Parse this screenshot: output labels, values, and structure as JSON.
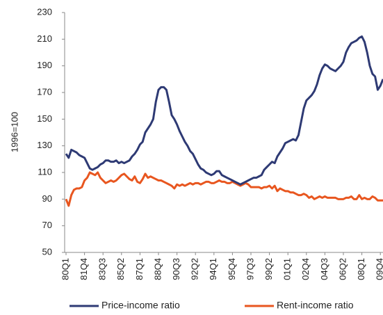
{
  "chart_data": {
    "type": "line",
    "y_label": "1996=100",
    "categories": [
      "80Q1",
      null,
      null,
      null,
      null,
      null,
      null,
      "81Q4",
      null,
      null,
      null,
      null,
      null,
      null,
      "83Q3",
      null,
      null,
      null,
      null,
      null,
      null,
      "85Q2",
      null,
      null,
      null,
      null,
      null,
      null,
      "87Q1",
      null,
      null,
      null,
      null,
      null,
      null,
      "88Q4",
      null,
      null,
      null,
      null,
      null,
      null,
      "90Q3",
      null,
      null,
      null,
      null,
      null,
      null,
      "92Q2",
      null,
      null,
      null,
      null,
      null,
      null,
      "94Q1",
      null,
      null,
      null,
      null,
      null,
      null,
      "95Q4",
      null,
      null,
      null,
      null,
      null,
      null,
      "97Q3",
      null,
      null,
      null,
      null,
      null,
      null,
      "99Q2",
      null,
      null,
      null,
      null,
      null,
      null,
      "01Q1",
      null,
      null,
      null,
      null,
      null,
      null,
      "02Q4",
      null,
      null,
      null,
      null,
      null,
      null,
      "04Q3",
      null,
      null,
      null,
      null,
      null,
      null,
      "06Q2",
      null,
      null,
      null,
      null,
      null,
      null,
      "08Q1",
      null,
      null,
      null,
      null,
      null,
      null,
      "09Q4",
      null
    ],
    "series": [
      {
        "name": "Price-income ratio",
        "color": "#2e3a74",
        "values": [
          124,
          121,
          127,
          126,
          125,
          123,
          122,
          121,
          117,
          113,
          112,
          113,
          114,
          116,
          117,
          119,
          119,
          118,
          118,
          119,
          117,
          118,
          117,
          118,
          119,
          122,
          124,
          127,
          131,
          133,
          140,
          143,
          146,
          150,
          163,
          172,
          174,
          174,
          172,
          163,
          153,
          150,
          146,
          141,
          137,
          133,
          130,
          126,
          124,
          120,
          116,
          113,
          112,
          110,
          109,
          108,
          109,
          111,
          111,
          108,
          107,
          106,
          105,
          104,
          103,
          102,
          101,
          102,
          103,
          104,
          105,
          106,
          106,
          107,
          108,
          112,
          114,
          116,
          118,
          117,
          122,
          125,
          128,
          132,
          133,
          134,
          135,
          134,
          138,
          148,
          158,
          164,
          166,
          168,
          171,
          176,
          183,
          188,
          191,
          190,
          188,
          187,
          186,
          188,
          190,
          193,
          200,
          204,
          207,
          208,
          209,
          211,
          212,
          208,
          200,
          190,
          184,
          182,
          172,
          175,
          180
        ]
      },
      {
        "name": "Rent-income ratio",
        "color": "#e8561f",
        "values": [
          90,
          85,
          93,
          97,
          98,
          98,
          99,
          104,
          106,
          110,
          109,
          108,
          110,
          106,
          104,
          102,
          103,
          104,
          103,
          104,
          106,
          108,
          109,
          107,
          105,
          104,
          107,
          103,
          102,
          105,
          109,
          106,
          107,
          106,
          105,
          104,
          104,
          103,
          102,
          101,
          100,
          98,
          101,
          100,
          101,
          100,
          101,
          102,
          101,
          102,
          102,
          101,
          102,
          103,
          103,
          102,
          102,
          103,
          104,
          103,
          103,
          102,
          102,
          103,
          102,
          101,
          100,
          101,
          102,
          101,
          99,
          99,
          99,
          99,
          98,
          99,
          99,
          100,
          98,
          100,
          96,
          98,
          97,
          96,
          96,
          95,
          95,
          94,
          93,
          93,
          94,
          93,
          91,
          92,
          90,
          91,
          92,
          91,
          92,
          91,
          91,
          91,
          91,
          90,
          90,
          90,
          91,
          91,
          92,
          90,
          90,
          93,
          90,
          91,
          90,
          90,
          92,
          91,
          89,
          89,
          89
        ]
      }
    ],
    "ylim": [
      50,
      230
    ],
    "yticks": [
      50,
      70,
      90,
      110,
      130,
      150,
      170,
      190,
      210,
      230
    ],
    "legend": "bottom"
  }
}
